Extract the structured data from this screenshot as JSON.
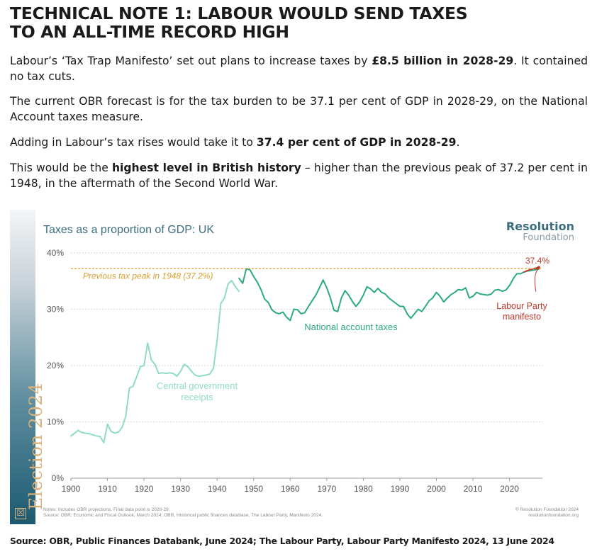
{
  "page": {
    "title_line1": "TECHNICAL NOTE 1: LABOUR WOULD SEND TAXES",
    "title_line2": "TO AN ALL-TIME RECORD HIGH",
    "p1_a": "Labour’s ‘Tax Trap Manifesto’ set out plans to increase taxes by ",
    "p1_b": "£8.5 billion in 2028-29",
    "p1_c": ". It contained no tax cuts.",
    "p2": "The current OBR forecast is for the tax burden to be 37.1 per cent of GDP in 2028-29, on the National Account taxes measure.",
    "p3_a": "Adding in Labour’s tax rises would take it to ",
    "p3_b": "37.4 per cent of GDP in 2028-29",
    "p3_c": ".",
    "p4_a": "This would be the ",
    "p4_b": "highest level in British history",
    "p4_c": " – higher than the previous peak of 37.2 per cent in 1948, in the aftermath of the Second World War.",
    "source": "Source: OBR, Public Finances Databank, June 2024; The Labour Party, Labour Party Manifesto 2024, 13 June 2024"
  },
  "figure": {
    "sidebar_label": "Election 2024",
    "sidebar_icon": "☒",
    "brand_line1": "Resolution",
    "brand_line2": "Foundation",
    "notes_line1": "Notes: Includes OBR projections. Final data point is 2028-29.",
    "notes_line2": "Source: OBR, Economic and Fiscal Outlook, March 2024; OBR, Historical public finances database, The Labour Party, Manifesto 2024.",
    "credit_line1": "© Resolution Foundation 2024",
    "credit_line2": "resolutionfoundation.org"
  },
  "chart_data": {
    "type": "line",
    "title": "Taxes as a proportion of GDP: UK",
    "xlabel": "",
    "ylabel": "",
    "xlim": [
      1900,
      2029
    ],
    "ylim": [
      0,
      40
    ],
    "xticks": [
      1900,
      1910,
      1920,
      1930,
      1940,
      1950,
      1960,
      1970,
      1980,
      1990,
      2000,
      2010,
      2020
    ],
    "yticks": [
      0,
      10,
      20,
      30,
      40
    ],
    "ytick_labels": [
      "0%",
      "10%",
      "20%",
      "30%",
      "40%"
    ],
    "grid": "horizontal dotted",
    "colors": {
      "central": "#8fdbc8",
      "national": "#2aaa80",
      "peak_line": "#d9a030",
      "labour": "#c0392b",
      "axis_text": "#555555",
      "title": "#3d6e80",
      "brand": "#3d6e80"
    },
    "reference_line": {
      "y": 37.2,
      "label": "Previous tax peak in 1948 (37.2%)"
    },
    "series": [
      {
        "name": "Central government receipts",
        "points": [
          [
            1900,
            7.5
          ],
          [
            1901,
            8.0
          ],
          [
            1902,
            8.5
          ],
          [
            1903,
            8.1
          ],
          [
            1904,
            8.0
          ],
          [
            1905,
            7.9
          ],
          [
            1906,
            7.7
          ],
          [
            1907,
            7.5
          ],
          [
            1908,
            7.4
          ],
          [
            1909,
            6.3
          ],
          [
            1910,
            9.6
          ],
          [
            1911,
            8.3
          ],
          [
            1912,
            8.0
          ],
          [
            1913,
            8.2
          ],
          [
            1914,
            9.0
          ],
          [
            1915,
            11.0
          ],
          [
            1916,
            16.0
          ],
          [
            1917,
            16.3
          ],
          [
            1918,
            18.0
          ],
          [
            1919,
            19.8
          ],
          [
            1920,
            20.0
          ],
          [
            1921,
            24.0
          ],
          [
            1922,
            21.0
          ],
          [
            1923,
            20.2
          ],
          [
            1924,
            18.6
          ],
          [
            1925,
            18.7
          ],
          [
            1926,
            18.6
          ],
          [
            1927,
            18.7
          ],
          [
            1928,
            18.6
          ],
          [
            1929,
            18.1
          ],
          [
            1930,
            19.0
          ],
          [
            1931,
            20.2
          ],
          [
            1932,
            19.8
          ],
          [
            1933,
            19.0
          ],
          [
            1934,
            18.3
          ],
          [
            1935,
            18.1
          ],
          [
            1936,
            18.2
          ],
          [
            1937,
            18.3
          ],
          [
            1938,
            18.5
          ],
          [
            1939,
            19.5
          ],
          [
            1940,
            24.5
          ],
          [
            1941,
            31.0
          ],
          [
            1942,
            32.0
          ],
          [
            1943,
            34.5
          ],
          [
            1944,
            35.1
          ],
          [
            1945,
            34.0
          ],
          [
            1946,
            33.2
          ]
        ]
      },
      {
        "name": "National account taxes",
        "points": [
          [
            1946,
            35.5
          ],
          [
            1947,
            34.6
          ],
          [
            1948,
            37.2
          ],
          [
            1949,
            37.0
          ],
          [
            1950,
            35.8
          ],
          [
            1951,
            34.8
          ],
          [
            1952,
            33.5
          ],
          [
            1953,
            31.8
          ],
          [
            1954,
            31.2
          ],
          [
            1955,
            29.9
          ],
          [
            1956,
            29.4
          ],
          [
            1957,
            29.2
          ],
          [
            1958,
            29.5
          ],
          [
            1959,
            28.6
          ],
          [
            1960,
            28.0
          ],
          [
            1961,
            30.0
          ],
          [
            1962,
            29.9
          ],
          [
            1963,
            29.2
          ],
          [
            1964,
            29.4
          ],
          [
            1965,
            30.5
          ],
          [
            1966,
            31.5
          ],
          [
            1967,
            32.5
          ],
          [
            1968,
            33.8
          ],
          [
            1969,
            35.2
          ],
          [
            1970,
            33.8
          ],
          [
            1971,
            32.0
          ],
          [
            1972,
            29.8
          ],
          [
            1973,
            29.6
          ],
          [
            1974,
            32.0
          ],
          [
            1975,
            33.3
          ],
          [
            1976,
            32.5
          ],
          [
            1977,
            31.4
          ],
          [
            1978,
            30.5
          ],
          [
            1979,
            31.3
          ],
          [
            1980,
            32.5
          ],
          [
            1981,
            34.0
          ],
          [
            1982,
            33.6
          ],
          [
            1983,
            33.0
          ],
          [
            1984,
            33.7
          ],
          [
            1985,
            33.0
          ],
          [
            1986,
            32.7
          ],
          [
            1987,
            32.0
          ],
          [
            1988,
            31.5
          ],
          [
            1989,
            31.0
          ],
          [
            1990,
            30.5
          ],
          [
            1991,
            30.5
          ],
          [
            1992,
            29.2
          ],
          [
            1993,
            28.4
          ],
          [
            1994,
            29.2
          ],
          [
            1995,
            30.0
          ],
          [
            1996,
            29.6
          ],
          [
            1997,
            30.5
          ],
          [
            1998,
            31.5
          ],
          [
            1999,
            32.0
          ],
          [
            2000,
            33.0
          ],
          [
            2001,
            32.3
          ],
          [
            2002,
            31.3
          ],
          [
            2003,
            32.0
          ],
          [
            2004,
            32.6
          ],
          [
            2005,
            33.0
          ],
          [
            2006,
            33.5
          ],
          [
            2007,
            33.4
          ],
          [
            2008,
            33.8
          ],
          [
            2009,
            32.0
          ],
          [
            2010,
            32.3
          ],
          [
            2011,
            33.0
          ],
          [
            2012,
            32.7
          ],
          [
            2013,
            32.6
          ],
          [
            2014,
            32.5
          ],
          [
            2015,
            32.7
          ],
          [
            2016,
            33.4
          ],
          [
            2017,
            33.5
          ],
          [
            2018,
            33.2
          ],
          [
            2019,
            33.4
          ],
          [
            2020,
            34.2
          ],
          [
            2021,
            35.4
          ],
          [
            2022,
            36.3
          ],
          [
            2023,
            36.3
          ],
          [
            2024,
            36.6
          ],
          [
            2025,
            36.8
          ],
          [
            2026,
            36.9
          ],
          [
            2027,
            37.0
          ],
          [
            2028,
            37.1
          ]
        ]
      },
      {
        "name": "Labour Party manifesto",
        "points": [
          [
            2024,
            36.6
          ],
          [
            2025,
            36.9
          ],
          [
            2026,
            37.1
          ],
          [
            2027,
            37.3
          ],
          [
            2028,
            37.4
          ]
        ]
      }
    ],
    "annotations": {
      "central_label": [
        "Central government",
        "receipts"
      ],
      "national_label": "National account taxes",
      "labour_label": [
        "Labour Party",
        "manifesto"
      ],
      "labour_value": "37.4%"
    }
  }
}
